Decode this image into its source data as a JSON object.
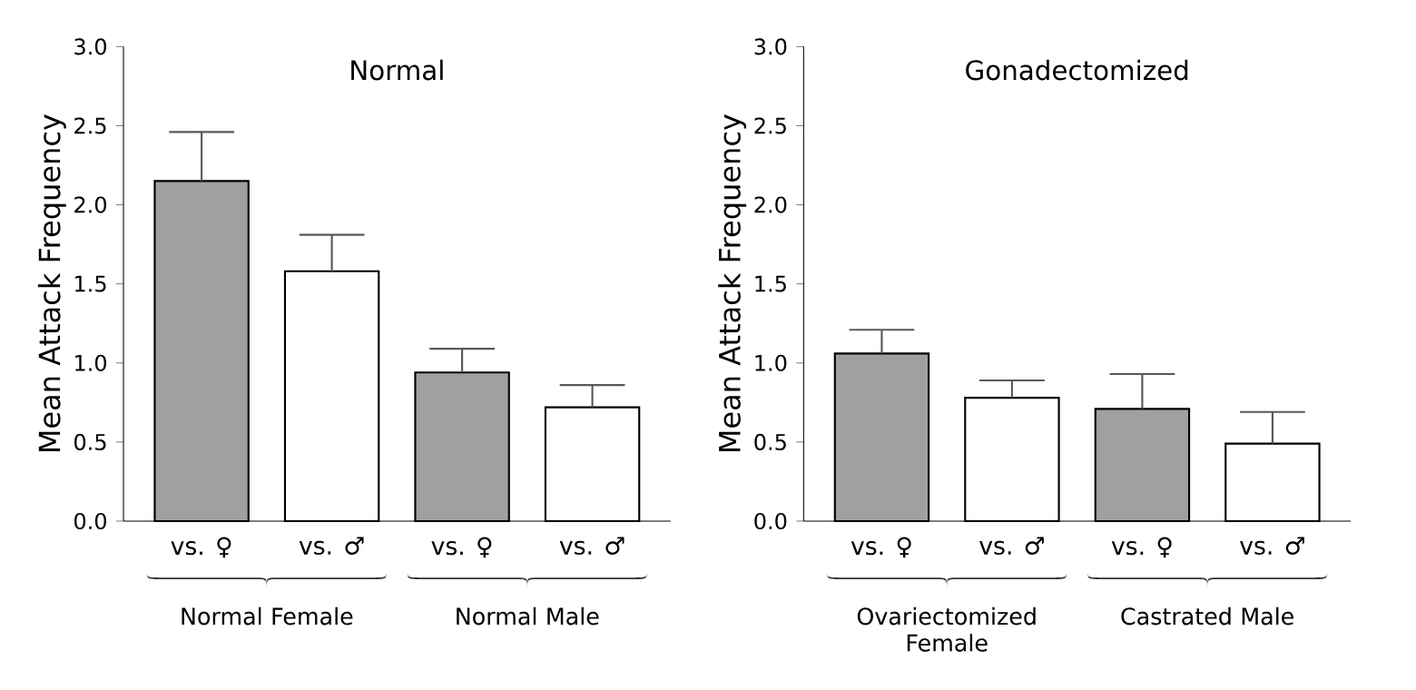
{
  "chart_data": [
    {
      "type": "bar",
      "title": "Normal",
      "ylabel": "Mean Attack Frequency",
      "categories": [
        "vs. ♀",
        "vs. ♂",
        "vs. ♀",
        "vs. ♂"
      ],
      "values": [
        2.15,
        1.58,
        0.94,
        0.72
      ],
      "colors": [
        "#a0a0a0",
        "#ffffff",
        "#a0a0a0",
        "#ffffff"
      ],
      "errors": [
        [
          2.15,
          2.46
        ],
        [
          1.58,
          1.81
        ],
        [
          0.94,
          1.09
        ],
        [
          0.72,
          0.86
        ]
      ],
      "ylim": [
        0,
        3
      ],
      "yticks": [
        {
          "value": 0,
          "label": "0.0"
        },
        {
          "value": 0.5,
          "label": "0.5"
        },
        {
          "value": 1,
          "label": "1.0"
        },
        {
          "value": 1.5,
          "label": "1.5"
        },
        {
          "value": 2,
          "label": "2.0"
        },
        {
          "value": 2.5,
          "label": "2.5"
        },
        {
          "value": 3,
          "label": "3.0"
        }
      ],
      "annotations": [
        "Normal Female",
        "Normal Male"
      ]
    },
    {
      "type": "bar",
      "title": "Gonadectomized",
      "ylabel": "Mean Attack Frequency",
      "categories": [
        "vs. ♀",
        "vs. ♂",
        "vs. ♀",
        "vs. ♂"
      ],
      "values": [
        1.06,
        0.78,
        0.71,
        0.49
      ],
      "colors": [
        "#a0a0a0",
        "#ffffff",
        "#a0a0a0",
        "#ffffff"
      ],
      "errors": [
        [
          1.06,
          1.21
        ],
        [
          0.78,
          0.89
        ],
        [
          0.71,
          0.93
        ],
        [
          0.49,
          0.69
        ]
      ],
      "ylim": [
        0,
        3
      ],
      "yticks": [
        {
          "value": 0,
          "label": "0.0"
        },
        {
          "value": 0.5,
          "label": "0.5"
        },
        {
          "value": 1,
          "label": "1.0"
        },
        {
          "value": 1.5,
          "label": "1.5"
        },
        {
          "value": 2,
          "label": "2.0"
        },
        {
          "value": 2.5,
          "label": "2.5"
        },
        {
          "value": 3,
          "label": "3.0"
        }
      ],
      "annotations": [
        "Ovariectomized Female",
        "Castrated Male"
      ]
    }
  ]
}
